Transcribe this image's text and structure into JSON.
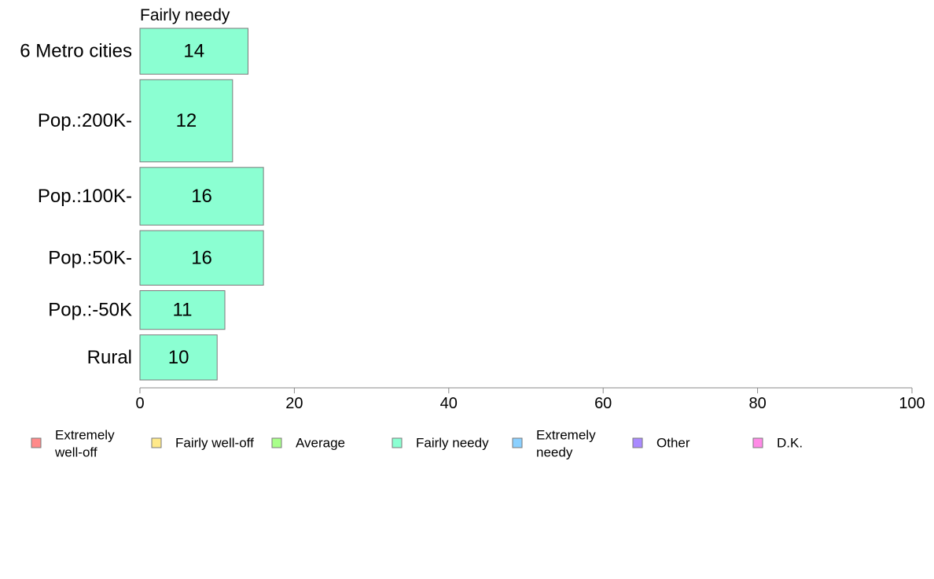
{
  "chart_data": {
    "type": "bar",
    "orientation": "horizontal",
    "title": "Fairly needy",
    "categories": [
      "6 Metro cities",
      "Pop.:200K-",
      "Pop.:100K-",
      "Pop.:50K-",
      "Pop.:-50K",
      "Rural"
    ],
    "series": [
      {
        "name": "Fairly needy",
        "values": [
          14,
          12,
          16,
          16,
          11,
          10
        ],
        "color": "#8bffd2"
      }
    ],
    "bar_thickness_relative": [
      58,
      104,
      73,
      69,
      49,
      57
    ],
    "xlim": [
      0,
      100
    ],
    "xticks": [
      0,
      20,
      40,
      60,
      80,
      100
    ],
    "xlabel": "",
    "ylabel": "",
    "grid": false,
    "legend": {
      "position": "bottom",
      "items": [
        {
          "label": "Extremely well-off",
          "lines": [
            "Extremely",
            "well-off"
          ],
          "color": "#ff8a8a"
        },
        {
          "label": "Fairly well-off",
          "lines": [
            "Fairly well-off"
          ],
          "color": "#ffe98a"
        },
        {
          "label": "Average",
          "lines": [
            "Average"
          ],
          "color": "#a8ff8a"
        },
        {
          "label": "Fairly needy",
          "lines": [
            "Fairly needy"
          ],
          "color": "#8bffd2"
        },
        {
          "label": "Extremely needy",
          "lines": [
            "Extremely",
            "needy"
          ],
          "color": "#8ad0ff"
        },
        {
          "label": "Other",
          "lines": [
            "Other"
          ],
          "color": "#a98aff"
        },
        {
          "label": "D.K.",
          "lines": [
            "D.K."
          ],
          "color": "#ff8ae6"
        }
      ]
    }
  }
}
